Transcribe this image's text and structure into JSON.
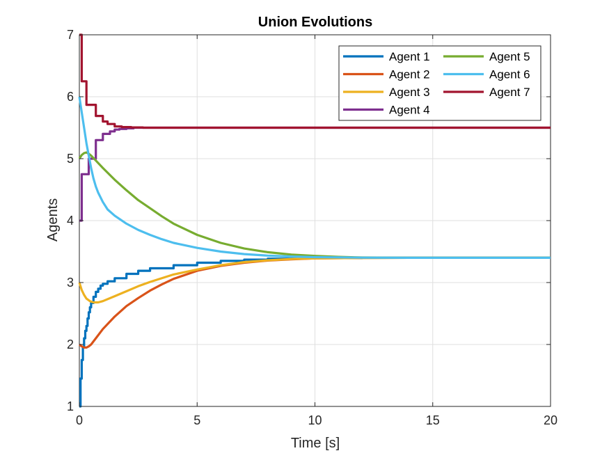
{
  "chart_data": {
    "type": "line",
    "title": "Union Evolutions",
    "xlabel": "Time [s]",
    "ylabel": "Agents",
    "xlim": [
      0,
      20
    ],
    "ylim": [
      1,
      7
    ],
    "xticks": [
      0,
      5,
      10,
      15,
      20
    ],
    "yticks": [
      1,
      2,
      3,
      4,
      5,
      6,
      7
    ],
    "xtick_labels": [
      "0",
      "5",
      "10",
      "15",
      "20"
    ],
    "ytick_labels": [
      "1",
      "2",
      "3",
      "4",
      "5",
      "6",
      "7"
    ],
    "grid": true,
    "legend_position": "top-right",
    "legend_columns": 2,
    "series": [
      {
        "name": "Agent 1",
        "color": "#0072BD",
        "step": true,
        "points": [
          [
            0,
            1
          ],
          [
            0.05,
            1.45
          ],
          [
            0.1,
            1.75
          ],
          [
            0.15,
            1.95
          ],
          [
            0.2,
            2.1
          ],
          [
            0.25,
            2.22
          ],
          [
            0.3,
            2.3
          ],
          [
            0.35,
            2.42
          ],
          [
            0.4,
            2.52
          ],
          [
            0.45,
            2.6
          ],
          [
            0.5,
            2.67
          ],
          [
            0.6,
            2.77
          ],
          [
            0.7,
            2.85
          ],
          [
            0.8,
            2.9
          ],
          [
            0.9,
            2.95
          ],
          [
            1,
            2.98
          ],
          [
            1.2,
            3.02
          ],
          [
            1.5,
            3.07
          ],
          [
            2,
            3.14
          ],
          [
            2.5,
            3.19
          ],
          [
            3,
            3.23
          ],
          [
            4,
            3.28
          ],
          [
            5,
            3.32
          ],
          [
            6,
            3.35
          ],
          [
            7,
            3.37
          ],
          [
            8,
            3.385
          ],
          [
            9,
            3.39
          ],
          [
            10,
            3.395
          ],
          [
            12,
            3.4
          ],
          [
            20,
            3.4
          ]
        ]
      },
      {
        "name": "Agent 2",
        "color": "#D95319",
        "step": false,
        "points": [
          [
            0,
            2
          ],
          [
            0.1,
            1.97
          ],
          [
            0.2,
            1.95
          ],
          [
            0.3,
            1.95
          ],
          [
            0.4,
            1.97
          ],
          [
            0.5,
            2.0
          ],
          [
            0.7,
            2.1
          ],
          [
            1,
            2.25
          ],
          [
            1.5,
            2.45
          ],
          [
            2,
            2.62
          ],
          [
            2.5,
            2.75
          ],
          [
            3,
            2.87
          ],
          [
            3.5,
            2.97
          ],
          [
            4,
            3.06
          ],
          [
            5,
            3.19
          ],
          [
            6,
            3.27
          ],
          [
            7,
            3.32
          ],
          [
            8,
            3.355
          ],
          [
            9,
            3.375
          ],
          [
            10,
            3.39
          ],
          [
            12,
            3.397
          ],
          [
            14,
            3.4
          ],
          [
            20,
            3.4
          ]
        ]
      },
      {
        "name": "Agent 3",
        "color": "#EDB120",
        "step": false,
        "points": [
          [
            0,
            3
          ],
          [
            0.1,
            2.88
          ],
          [
            0.2,
            2.8
          ],
          [
            0.3,
            2.74
          ],
          [
            0.45,
            2.7
          ],
          [
            0.6,
            2.68
          ],
          [
            0.8,
            2.68
          ],
          [
            1,
            2.7
          ],
          [
            1.5,
            2.78
          ],
          [
            2,
            2.86
          ],
          [
            2.5,
            2.94
          ],
          [
            3,
            3.01
          ],
          [
            4,
            3.13
          ],
          [
            5,
            3.21
          ],
          [
            6,
            3.28
          ],
          [
            7,
            3.33
          ],
          [
            8,
            3.36
          ],
          [
            9,
            3.38
          ],
          [
            10,
            3.39
          ],
          [
            12,
            3.398
          ],
          [
            14,
            3.4
          ],
          [
            20,
            3.4
          ]
        ]
      },
      {
        "name": "Agent 4",
        "color": "#7E2F8E",
        "step": true,
        "points": [
          [
            0,
            4
          ],
          [
            0.1,
            4.75
          ],
          [
            0.4,
            5.0
          ],
          [
            0.7,
            5.3
          ],
          [
            1.0,
            5.4
          ],
          [
            1.3,
            5.44
          ],
          [
            1.5,
            5.47
          ],
          [
            1.7,
            5.48
          ],
          [
            2.0,
            5.49
          ],
          [
            2.3,
            5.5
          ],
          [
            20,
            5.5
          ]
        ]
      },
      {
        "name": "Agent 5",
        "color": "#77AC30",
        "step": false,
        "points": [
          [
            0,
            5
          ],
          [
            0.1,
            5.06
          ],
          [
            0.2,
            5.09
          ],
          [
            0.3,
            5.1
          ],
          [
            0.4,
            5.08
          ],
          [
            0.5,
            5.05
          ],
          [
            0.7,
            4.97
          ],
          [
            1,
            4.85
          ],
          [
            1.5,
            4.66
          ],
          [
            2,
            4.49
          ],
          [
            2.5,
            4.33
          ],
          [
            3,
            4.2
          ],
          [
            3.5,
            4.07
          ],
          [
            4,
            3.95
          ],
          [
            5,
            3.77
          ],
          [
            6,
            3.64
          ],
          [
            7,
            3.55
          ],
          [
            8,
            3.49
          ],
          [
            9,
            3.45
          ],
          [
            10,
            3.43
          ],
          [
            11,
            3.415
          ],
          [
            12,
            3.405
          ],
          [
            14,
            3.4
          ],
          [
            20,
            3.4
          ]
        ]
      },
      {
        "name": "Agent 6",
        "color": "#4DBEEE",
        "step": false,
        "points": [
          [
            0,
            6
          ],
          [
            0.1,
            5.75
          ],
          [
            0.2,
            5.5
          ],
          [
            0.3,
            5.25
          ],
          [
            0.4,
            5.05
          ],
          [
            0.5,
            4.85
          ],
          [
            0.6,
            4.68
          ],
          [
            0.7,
            4.55
          ],
          [
            0.8,
            4.45
          ],
          [
            1,
            4.3
          ],
          [
            1.2,
            4.18
          ],
          [
            1.5,
            4.08
          ],
          [
            2,
            3.95
          ],
          [
            2.5,
            3.85
          ],
          [
            3,
            3.77
          ],
          [
            3.5,
            3.7
          ],
          [
            4,
            3.64
          ],
          [
            5,
            3.56
          ],
          [
            6,
            3.5
          ],
          [
            7,
            3.46
          ],
          [
            8,
            3.435
          ],
          [
            9,
            3.42
          ],
          [
            10,
            3.41
          ],
          [
            12,
            3.402
          ],
          [
            14,
            3.4
          ],
          [
            20,
            3.4
          ]
        ]
      },
      {
        "name": "Agent 7",
        "color": "#A2142F",
        "step": true,
        "points": [
          [
            0,
            7
          ],
          [
            0.1,
            6.25
          ],
          [
            0.3,
            5.87
          ],
          [
            0.7,
            5.69
          ],
          [
            1.0,
            5.6
          ],
          [
            1.2,
            5.56
          ],
          [
            1.5,
            5.52
          ],
          [
            1.8,
            5.51
          ],
          [
            2.2,
            5.505
          ],
          [
            2.7,
            5.5
          ],
          [
            20,
            5.5
          ]
        ]
      }
    ]
  }
}
